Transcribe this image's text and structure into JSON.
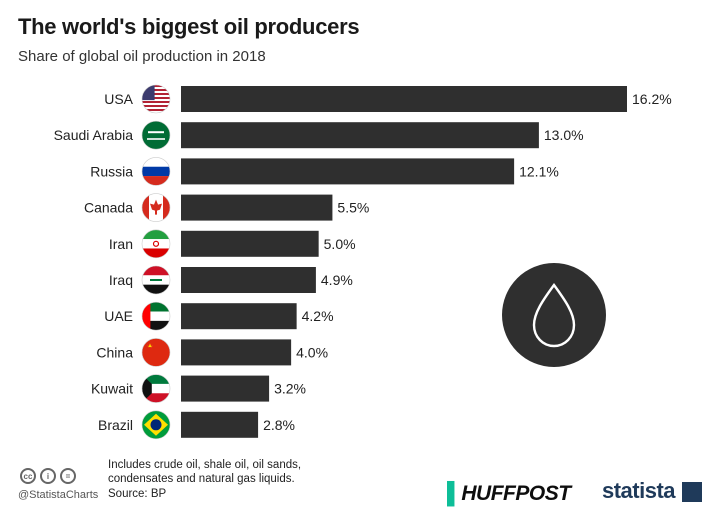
{
  "title": "The world's biggest oil producers",
  "subtitle": "Share of global oil production in 2018",
  "chart_data": {
    "type": "bar",
    "orientation": "horizontal",
    "title": "The world's biggest oil producers",
    "subtitle": "Share of global oil production in 2018",
    "categories": [
      "USA",
      "Saudi Arabia",
      "Russia",
      "Canada",
      "Iran",
      "Iraq",
      "UAE",
      "China",
      "Kuwait",
      "Brazil"
    ],
    "values": [
      16.2,
      13.0,
      12.1,
      5.5,
      5.0,
      4.9,
      4.2,
      4.0,
      3.2,
      2.8
    ],
    "value_labels": [
      "16.2%",
      "13.0%",
      "12.1%",
      "5.5%",
      "5.0%",
      "4.9%",
      "4.2%",
      "4.0%",
      "3.2%",
      "2.8%"
    ],
    "xlim": [
      0,
      16.2
    ],
    "grid": false,
    "bar_color": "#2f2f2f"
  },
  "flags": [
    "us-flag-icon",
    "saudi-arabia-flag-icon",
    "russia-flag-icon",
    "canada-flag-icon",
    "iran-flag-icon",
    "iraq-flag-icon",
    "uae-flag-icon",
    "china-flag-icon",
    "kuwait-flag-icon",
    "brazil-flag-icon"
  ],
  "decoration": {
    "icon": "oil-drop-icon",
    "circle_color": "#2f2f2f"
  },
  "footer": {
    "handle": "@StatistaCharts",
    "note": "Includes crude oil, shale oil, oil sands, condensates and natural gas liquids.",
    "source": "Source: BP",
    "huffpost_label": "HUFFPOST",
    "statista_label": "statista"
  },
  "colors": {
    "bar": "#2f2f2f",
    "text": "#222222",
    "huffpost_accent": "#0dbe98",
    "statista": "#1f3a5a"
  }
}
